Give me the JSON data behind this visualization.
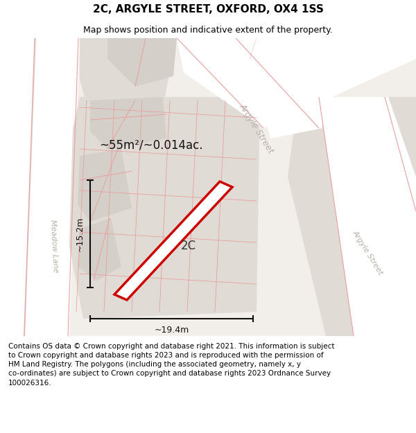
{
  "title": "2C, ARGYLE STREET, OXFORD, OX4 1SS",
  "subtitle": "Map shows position and indicative extent of the property.",
  "footer": "Contains OS data © Crown copyright and database right 2021. This information is subject to Crown copyright and database rights 2023 and is reproduced with the permission of HM Land Registry. The polygons (including the associated geometry, namely x, y co-ordinates) are subject to Crown copyright and database rights 2023 Ordnance Survey 100026316.",
  "area_label": "~55m²/~0.014ac.",
  "width_label": "~19.4m",
  "height_label": "~15.2m",
  "property_label": "2C",
  "map_bg": "#f2eeea",
  "road_fill": "#ffffff",
  "block_light": "#e0dbd5",
  "block_mid": "#d4cfc9",
  "road_line_color": "#e8a0a0",
  "property_fill": "#ffffff",
  "property_edge": "#cc0000",
  "dim_color": "#111111",
  "street_label_color": "#b8b0a8",
  "green_color": "#d8e8d0",
  "title_fontsize": 11,
  "subtitle_fontsize": 9,
  "footer_fontsize": 7.5
}
